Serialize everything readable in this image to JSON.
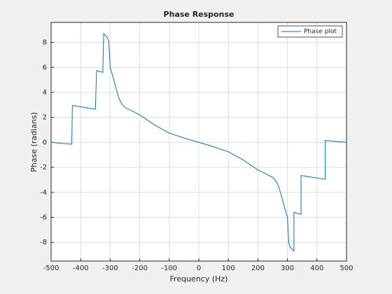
{
  "chart_data": {
    "type": "line",
    "title": "Phase Response",
    "x_label": "Frequency (Hz)",
    "y_label": "Phase (radians)",
    "x": [
      -500,
      -430,
      -428,
      -400,
      -350,
      -346,
      -325,
      -322,
      -310,
      -305,
      -300,
      -290,
      -280,
      -270,
      -260,
      -250,
      -200,
      -150,
      -100,
      -50,
      0,
      50,
      100,
      150,
      200,
      250,
      260,
      270,
      280,
      290,
      300,
      305,
      310,
      322,
      322,
      346,
      346,
      400,
      428,
      428,
      500
    ],
    "series": [
      {
        "name": "Phase plot",
        "color": "#0072bd",
        "values": [
          0,
          -0.15,
          2.95,
          2.85,
          2.65,
          5.75,
          5.6,
          8.7,
          8.4,
          8.1,
          6,
          5.2,
          4.3,
          3.5,
          3.05,
          2.8,
          2.2,
          1.4,
          0.75,
          0.35,
          0,
          -0.35,
          -0.75,
          -1.4,
          -2.2,
          -2.8,
          -3.05,
          -3.5,
          -4.3,
          -5.2,
          -6,
          -8.1,
          -8.4,
          -8.7,
          -5.6,
          -5.75,
          -2.65,
          -2.85,
          -2.95,
          0.15,
          0
        ]
      }
    ],
    "xlim": [
      -500,
      500
    ],
    "ylim": [
      -9.5,
      9.6
    ],
    "xticks": [
      -500,
      -400,
      -300,
      -200,
      -100,
      0,
      100,
      200,
      300,
      400,
      500
    ],
    "yticks": [
      -8,
      -6,
      -4,
      -2,
      0,
      2,
      4,
      6,
      8
    ],
    "grid": true,
    "legend": "northeast"
  }
}
